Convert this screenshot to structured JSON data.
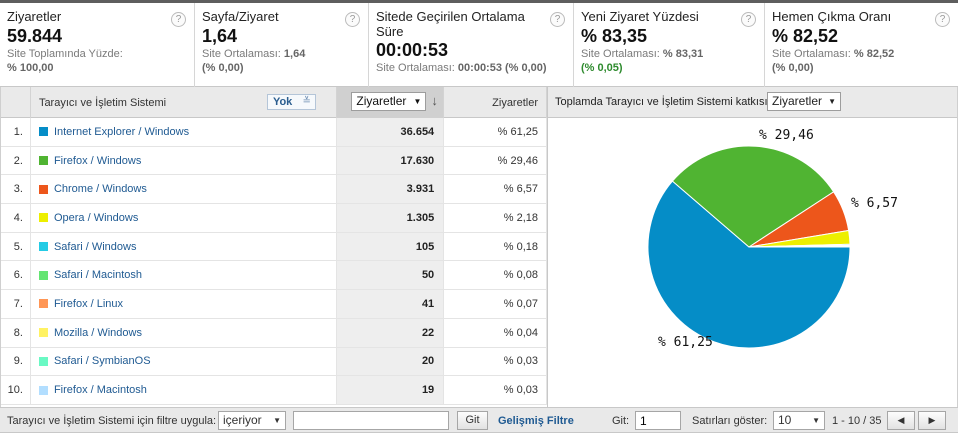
{
  "metrics": [
    {
      "title": "Ziyaretler",
      "value": "59.844",
      "sub1": "Site Toplamında Yüzde:",
      "sub2": "% 100,00"
    },
    {
      "title": "Sayfa/Ziyaret",
      "value": "1,64",
      "sub_label": "Site Ortalaması:",
      "sub_value": "1,64",
      "sub2": "(% 0,00)"
    },
    {
      "title": "Sitede Geçirilen Ortalama Süre",
      "value": "00:00:53",
      "sub_label": "Site Ortalaması:",
      "sub_value": "00:00:53 (% 0,00)"
    },
    {
      "title": "Yeni Ziyaret Yüzdesi",
      "value": "% 83,35",
      "sub_label": "Site Ortalaması:",
      "sub_value": "% 83,31",
      "sub2": "(% 0,05)"
    },
    {
      "title": "Hemen Çıkma Oranı",
      "value": "% 82,52",
      "sub_label": "Site Ortalaması:",
      "sub_value": "% 82,52",
      "sub2": "(% 0,00)"
    }
  ],
  "help_glyph": "?",
  "table": {
    "col_dimension": "Tarayıcı ve İşletim Sistemi",
    "secondary_dim": "Yok",
    "sort_metric": "Ziyaretler",
    "col_pct": "Ziyaretler",
    "rows": [
      {
        "n": "1.",
        "name": "Internet Explorer / Windows",
        "visits": "36.654",
        "pct": "% 61,25",
        "color": "#058dc7"
      },
      {
        "n": "2.",
        "name": "Firefox / Windows",
        "visits": "17.630",
        "pct": "% 29,46",
        "color": "#50b432"
      },
      {
        "n": "3.",
        "name": "Chrome / Windows",
        "visits": "3.931",
        "pct": "% 6,57",
        "color": "#ed561b"
      },
      {
        "n": "4.",
        "name": "Opera / Windows",
        "visits": "1.305",
        "pct": "% 2,18",
        "color": "#edef00"
      },
      {
        "n": "5.",
        "name": "Safari / Windows",
        "visits": "105",
        "pct": "% 0,18",
        "color": "#24cbe5"
      },
      {
        "n": "6.",
        "name": "Safari / Macintosh",
        "visits": "50",
        "pct": "% 0,08",
        "color": "#64e572"
      },
      {
        "n": "7.",
        "name": "Firefox / Linux",
        "visits": "41",
        "pct": "% 0,07",
        "color": "#ff9655"
      },
      {
        "n": "8.",
        "name": "Mozilla / Windows",
        "visits": "22",
        "pct": "% 0,04",
        "color": "#fff263"
      },
      {
        "n": "9.",
        "name": "Safari / SymbianOS",
        "visits": "20",
        "pct": "% 0,03",
        "color": "#6af9c4"
      },
      {
        "n": "10.",
        "name": "Firefox / Macintosh",
        "visits": "19",
        "pct": "% 0,03",
        "color": "#b2deff"
      }
    ]
  },
  "pie": {
    "header_text": "Toplamda Tarayıcı ve İşletim Sistemi katkısı:",
    "metric_select": "Ziyaretler",
    "labels": [
      "% 29,46",
      "% 6,57",
      "% 61,25"
    ]
  },
  "chart_data": {
    "type": "pie",
    "categories": [
      "Internet Explorer / Windows",
      "Firefox / Windows",
      "Chrome / Windows",
      "Opera / Windows",
      "Safari / Windows",
      "Safari / Macintosh",
      "Firefox / Linux",
      "Mozilla / Windows",
      "Safari / SymbianOS",
      "Firefox / Macintosh"
    ],
    "values": [
      61.25,
      29.46,
      6.57,
      2.18,
      0.18,
      0.08,
      0.07,
      0.04,
      0.03,
      0.03
    ],
    "colors": [
      "#058dc7",
      "#50b432",
      "#ed561b",
      "#edef00",
      "#24cbe5",
      "#64e572",
      "#ff9655",
      "#fff263",
      "#6af9c4",
      "#b2deff"
    ]
  },
  "footer": {
    "filter_label": "Tarayıcı ve İşletim Sistemi için filtre uygula:",
    "filter_op": "içeriyor",
    "filter_value": "",
    "go_button": "Git",
    "advanced_filter": "Gelişmiş Filtre",
    "goto_label": "Git:",
    "goto_value": "1",
    "rows_label": "Satırları göster:",
    "rows_value": "10",
    "range": "1 - 10 / 35",
    "prev_glyph": "◀",
    "next_glyph": "▶"
  }
}
